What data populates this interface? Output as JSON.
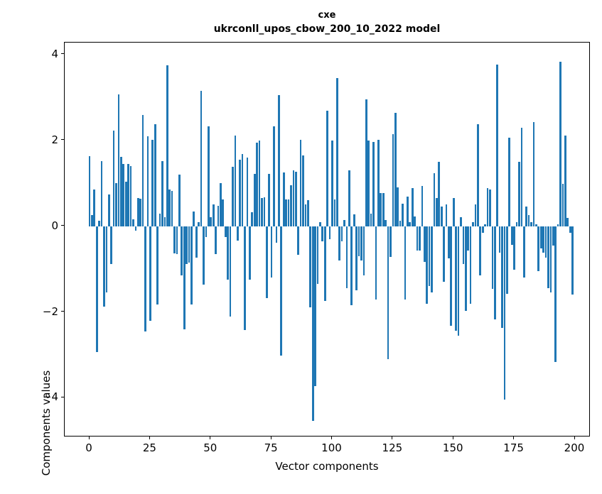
{
  "figure": {
    "title_line1": "cxe",
    "title_line2": "ukrconll_upos_cbow_200_10_2022 model",
    "background_color": "#ffffff",
    "text_color": "#000000"
  },
  "chart_data": {
    "type": "bar",
    "title": "cxe ukrconll_upos_cbow_200_10_2022 model",
    "xlabel": "Vector components",
    "ylabel": "Components values",
    "bar_color": "#1f77b4",
    "grid": false,
    "legend": false,
    "x_start": 0,
    "x_end": 199,
    "xlim": [
      -10,
      209
    ],
    "ylim": [
      -4.92,
      4.28
    ],
    "xticks": [
      0,
      25,
      50,
      75,
      100,
      125,
      150,
      175,
      200
    ],
    "yticks": [
      4,
      2,
      0,
      -2,
      -4
    ],
    "ytick_labels": [
      "4",
      "2",
      "0",
      "−2",
      "−4"
    ],
    "xtick_labels": [
      "0",
      "25",
      "50",
      "75",
      "100",
      "125",
      "150",
      "175",
      "200"
    ],
    "values": [
      1.63,
      0.26,
      0.85,
      -2.93,
      0.13,
      1.51,
      -1.88,
      -1.55,
      0.74,
      -0.88,
      2.22,
      1.0,
      3.08,
      1.61,
      1.45,
      1.04,
      1.45,
      1.4,
      0.16,
      -0.1,
      0.65,
      0.64,
      2.6,
      -2.45,
      2.1,
      -2.2,
      2.02,
      2.38,
      -1.82,
      0.29,
      1.51,
      0.21,
      3.75,
      0.85,
      0.82,
      -0.63,
      -0.65,
      1.2,
      -1.15,
      -2.41,
      -0.88,
      -0.85,
      -1.82,
      0.35,
      -0.73,
      0.09,
      3.15,
      -1.36,
      -0.25,
      2.32,
      0.21,
      0.51,
      -0.65,
      0.48,
      1.0,
      0.63,
      -0.26,
      -1.24,
      -2.1,
      1.39,
      2.11,
      -0.33,
      1.55,
      1.68,
      -2.42,
      1.6,
      -1.25,
      0.33,
      1.22,
      1.95,
      2.0,
      0.65,
      0.68,
      -1.67,
      1.22,
      -1.2,
      2.33,
      -0.38,
      3.05,
      -3.02,
      1.25,
      0.62,
      0.62,
      0.95,
      1.3,
      1.27,
      -0.67,
      2.02,
      1.65,
      0.5,
      0.6,
      -1.9,
      -4.54,
      -3.73,
      -1.35,
      0.1,
      -0.35,
      -1.75,
      2.69,
      -0.3,
      2.0,
      0.62,
      3.45,
      -0.8,
      -0.35,
      0.15,
      -1.45,
      1.3,
      -1.85,
      0.28,
      -1.5,
      -0.7,
      -0.8,
      -1.15,
      2.95,
      2.0,
      0.29,
      1.97,
      -1.71,
      2.02,
      0.78,
      0.78,
      0.15,
      -3.1,
      -0.71,
      2.14,
      2.65,
      0.91,
      0.12,
      0.52,
      -1.71,
      0.69,
      0.1,
      0.88,
      0.22,
      -0.57,
      -0.57,
      0.93,
      -0.83,
      -1.81,
      -1.4,
      -1.55,
      1.24,
      0.66,
      1.5,
      0.45,
      -1.29,
      0.5,
      -0.75,
      -2.33,
      0.66,
      -2.43,
      -2.56,
      0.21,
      -0.88,
      -1.97,
      -0.57,
      -1.81,
      0.1,
      0.5,
      2.38,
      -1.14,
      -0.16,
      0.05,
      0.88,
      0.86,
      -1.47,
      -2.18,
      3.76,
      -0.61,
      -2.38,
      -4.05,
      -1.57,
      2.07,
      -0.43,
      -1.02,
      0.1,
      1.5,
      2.29,
      -1.2,
      0.46,
      0.26,
      0.1,
      2.43,
      0.05,
      -1.04,
      -0.52,
      -0.62,
      -0.73,
      -1.45,
      -1.55,
      -0.45,
      -3.16,
      0.05,
      3.83,
      0.98,
      2.12,
      0.2,
      -0.15,
      -1.6
    ]
  }
}
